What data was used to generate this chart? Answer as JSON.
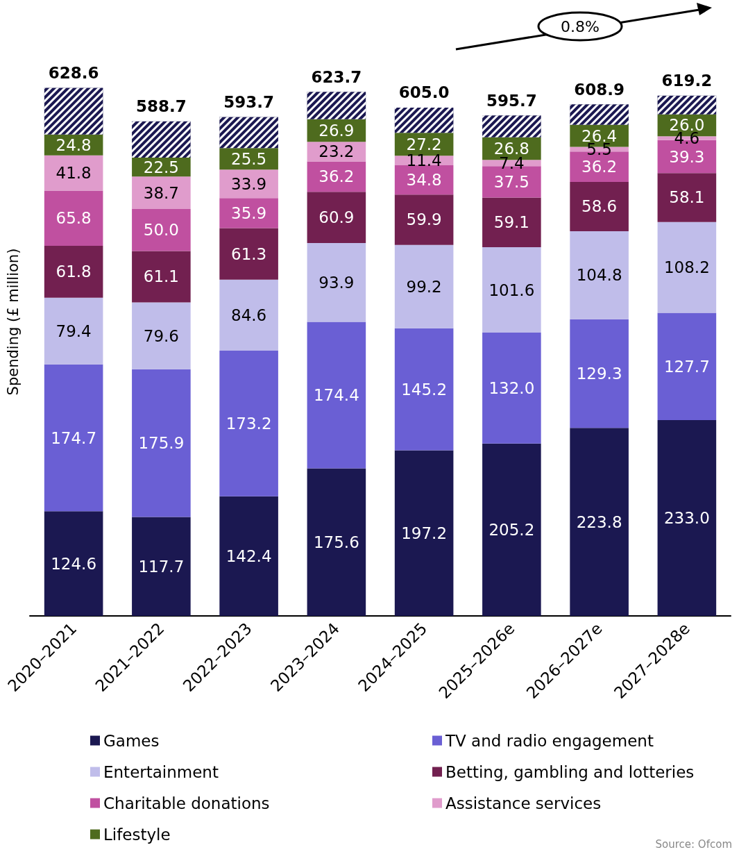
{
  "chart_data": {
    "type": "bar",
    "stacked": true,
    "ylabel": "Spending (£ million)",
    "categories": [
      "2020–2021",
      "2021–2022",
      "2022–2023",
      "2023–2024",
      "2024–2025",
      "2025–2026e",
      "2026–2027e",
      "2027–2028e"
    ],
    "series": [
      {
        "name": "Games",
        "color": "#1b1851",
        "values": [
          124.6,
          117.7,
          142.4,
          175.6,
          197.2,
          205.2,
          223.8,
          233.0
        ],
        "value_labels": [
          "124.6",
          "117.7",
          "142.4",
          "175.6",
          "197.2",
          "205.2",
          "223.8",
          "233.0"
        ]
      },
      {
        "name": "TV and radio engagement",
        "color": "#6a5fd4",
        "values": [
          174.7,
          175.9,
          173.2,
          174.4,
          145.2,
          132.0,
          129.3,
          127.7
        ],
        "value_labels": [
          "174.7",
          "175.9",
          "173.2",
          "174.4",
          "145.2",
          "132.0",
          "129.3",
          "127.7"
        ]
      },
      {
        "name": "Entertainment",
        "color": "#c0bdea",
        "values": [
          79.4,
          79.6,
          84.6,
          93.9,
          99.2,
          101.6,
          104.8,
          108.2
        ]
      },
      {
        "name": "Betting, gambling and lotteries",
        "color": "#722050",
        "values": [
          61.8,
          61.1,
          61.3,
          60.9,
          59.9,
          59.1,
          58.6,
          58.1
        ]
      },
      {
        "name": "Charitable donations",
        "color": "#c050a0",
        "values": [
          65.8,
          50.0,
          35.9,
          36.2,
          34.8,
          37.5,
          36.2,
          39.3
        ],
        "value_labels": [
          "65.8",
          "50.0",
          "35.9",
          "36.2",
          "34.8",
          "37.5",
          "36.2",
          "39.3"
        ]
      },
      {
        "name": "Assistance services",
        "color": "#e09ccc",
        "values": [
          41.8,
          38.7,
          33.9,
          23.2,
          11.4,
          7.4,
          5.5,
          4.6
        ]
      },
      {
        "name": "Lifestyle",
        "color": "#4e6b1e",
        "values": [
          24.8,
          22.5,
          25.5,
          26.9,
          27.2,
          26.8,
          26.4,
          26.0
        ],
        "value_labels": [
          "24.8",
          "22.5",
          "25.5",
          "26.9",
          "27.2",
          "26.8",
          "26.4",
          "26.0"
        ]
      },
      {
        "color": "#1b1851",
        "values": [
          55.7,
          43.2,
          36.9,
          32.6,
          30.1,
          26.1,
          24.3,
          22.3
        ],
        "value_labels": [
          null,
          null,
          null,
          null,
          null,
          null,
          null,
          null
        ]
      }
    ],
    "totals": [
      "628.6",
      "588.7",
      "593.7",
      "623.7",
      "605.0",
      "595.7",
      "608.9",
      "619.2"
    ],
    "data_labels": true,
    "grid": false,
    "legend": "bottom",
    "annotations": [
      "0.8%",
      "Source: Ofcom"
    ]
  }
}
